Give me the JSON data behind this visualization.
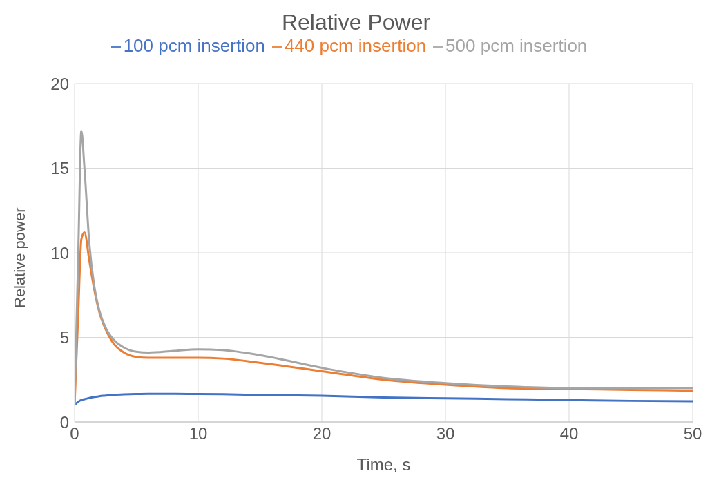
{
  "chart_data": {
    "type": "line",
    "title": "Relative Power",
    "xlabel": "Time, s",
    "ylabel": "Relative power",
    "x": [
      0,
      0.3,
      0.55,
      0.8,
      1.2,
      1.6,
      2,
      2.5,
      3,
      4,
      5,
      6,
      8,
      10,
      12,
      15,
      20,
      25,
      30,
      35,
      40,
      45,
      50
    ],
    "series": [
      {
        "name": "100 pcm insertion",
        "color": "#4472c4",
        "values": [
          1.0,
          1.2,
          1.3,
          1.35,
          1.42,
          1.48,
          1.52,
          1.56,
          1.6,
          1.63,
          1.65,
          1.66,
          1.66,
          1.65,
          1.64,
          1.6,
          1.55,
          1.45,
          1.4,
          1.35,
          1.3,
          1.25,
          1.22
        ]
      },
      {
        "name": "440 pcm insertion",
        "color": "#ed7d31",
        "values": [
          1.0,
          6.5,
          10.8,
          11.2,
          9.5,
          7.8,
          6.5,
          5.5,
          4.8,
          4.1,
          3.85,
          3.8,
          3.8,
          3.8,
          3.75,
          3.5,
          3.0,
          2.5,
          2.2,
          2.0,
          1.95,
          1.9,
          1.85
        ]
      },
      {
        "name": "500 pcm insertion",
        "color": "#a5a5a5",
        "values": [
          1.0,
          10,
          17.2,
          15,
          10.5,
          8,
          6.6,
          5.6,
          5.0,
          4.4,
          4.15,
          4.1,
          4.2,
          4.3,
          4.25,
          3.95,
          3.2,
          2.6,
          2.3,
          2.1,
          2.0,
          2.0,
          2.0
        ]
      }
    ],
    "xlim": [
      0,
      50
    ],
    "xticks": [
      0,
      10,
      20,
      30,
      40,
      50
    ],
    "ylim": [
      0,
      20
    ],
    "yticks": [
      0,
      5,
      10,
      15,
      20
    ],
    "grid": true,
    "legend": "top",
    "marker": "none",
    "line_style": "solid"
  }
}
